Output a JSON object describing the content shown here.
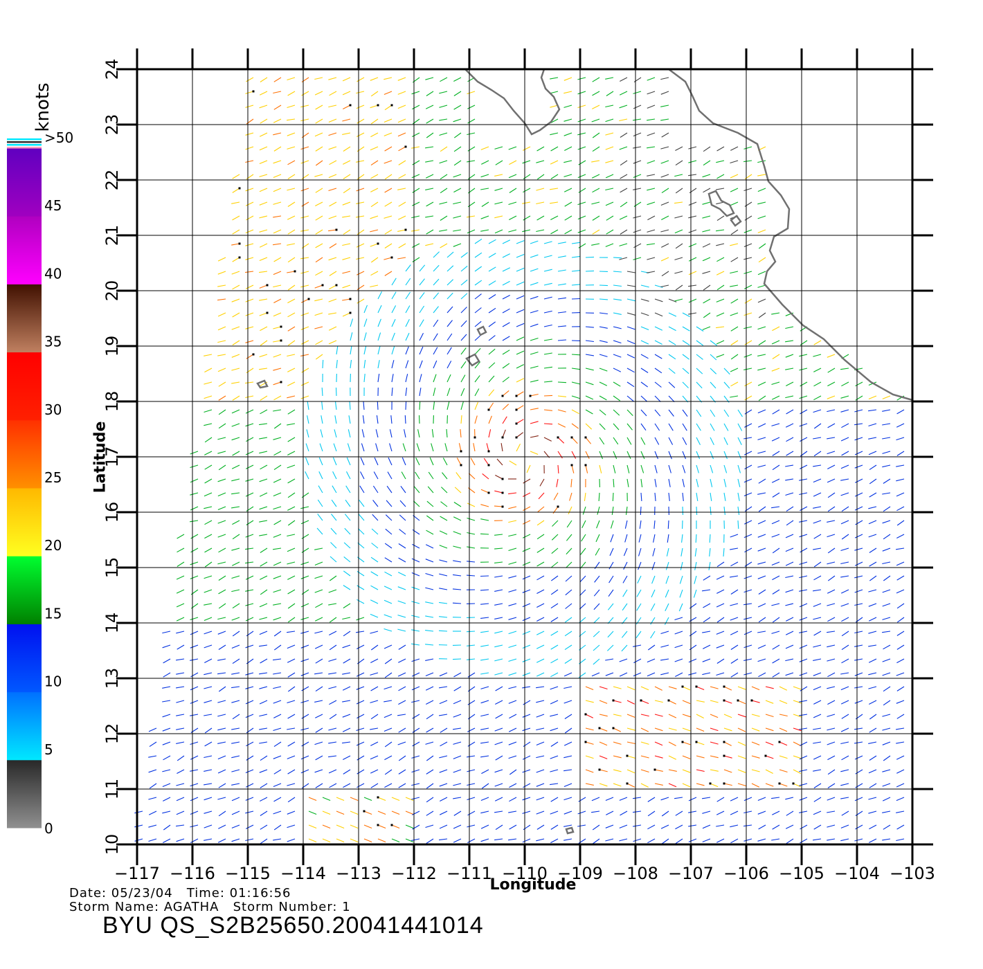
{
  "colorbar": {
    "unit": "knots",
    "tick_labels": [
      "0",
      "5",
      "10",
      "15",
      "20",
      "25",
      "30",
      "35",
      "40",
      "45",
      ">50"
    ],
    "bands": [
      {
        "from": 0,
        "to": 5,
        "colors": [
          "#909090",
          "#282828"
        ]
      },
      {
        "from": 5,
        "to": 10,
        "colors": [
          "#00e8ff",
          "#0070ff"
        ]
      },
      {
        "from": 10,
        "to": 15,
        "colors": [
          "#0058ff",
          "#0010f0"
        ]
      },
      {
        "from": 15,
        "to": 20,
        "colors": [
          "#008000",
          "#00ff30"
        ]
      },
      {
        "from": 20,
        "to": 25,
        "colors": [
          "#ffff20",
          "#ffb800"
        ]
      },
      {
        "from": 25,
        "to": 30,
        "colors": [
          "#ff9000",
          "#ff3000"
        ]
      },
      {
        "from": 30,
        "to": 35,
        "colors": [
          "#ff2000",
          "#ff0000"
        ]
      },
      {
        "from": 35,
        "to": 40,
        "colors": [
          "#c08060",
          "#401000"
        ]
      },
      {
        "from": 40,
        "to": 45,
        "colors": [
          "#ff00ff",
          "#b000c0"
        ]
      },
      {
        "from": 45,
        "to": 50,
        "colors": [
          "#a000c0",
          "#6000c0"
        ]
      }
    ]
  },
  "chart_data": {
    "type": "vector-field",
    "xlabel": "Longitude",
    "ylabel": "Latitude",
    "xlim": [
      -117,
      -103
    ],
    "ylim": [
      10,
      24
    ],
    "x_ticks": [
      "-117",
      "-116",
      "-115",
      "-114",
      "-113",
      "-112",
      "-111",
      "-110",
      "-109",
      "-108",
      "-107",
      "-106",
      "-105",
      "-104",
      "-103"
    ],
    "y_ticks": [
      "10",
      "11",
      "12",
      "13",
      "14",
      "15",
      "16",
      "17",
      "18",
      "19",
      "20",
      "21",
      "22",
      "23",
      "24"
    ],
    "grid": true,
    "storm_center": {
      "lon": -110,
      "lat": 17
    },
    "high_wind_band_1": {
      "lon_range": [
        -109,
        -105
      ],
      "lat_range": [
        11,
        13
      ]
    },
    "high_wind_band_2": {
      "lon_range": [
        -114,
        -112
      ],
      "lat_range": [
        10,
        11
      ]
    },
    "swath_left_edge": {
      "top_lon": -114.9,
      "bottom_lon": -117
    }
  },
  "info": {
    "date_line": "Date: 05/23/04   Time: 01:16:56",
    "storm_line": "Storm Name: AGATHA   Storm Number: 1",
    "file_title": "BYU QS_S2B25650.20041441014"
  }
}
